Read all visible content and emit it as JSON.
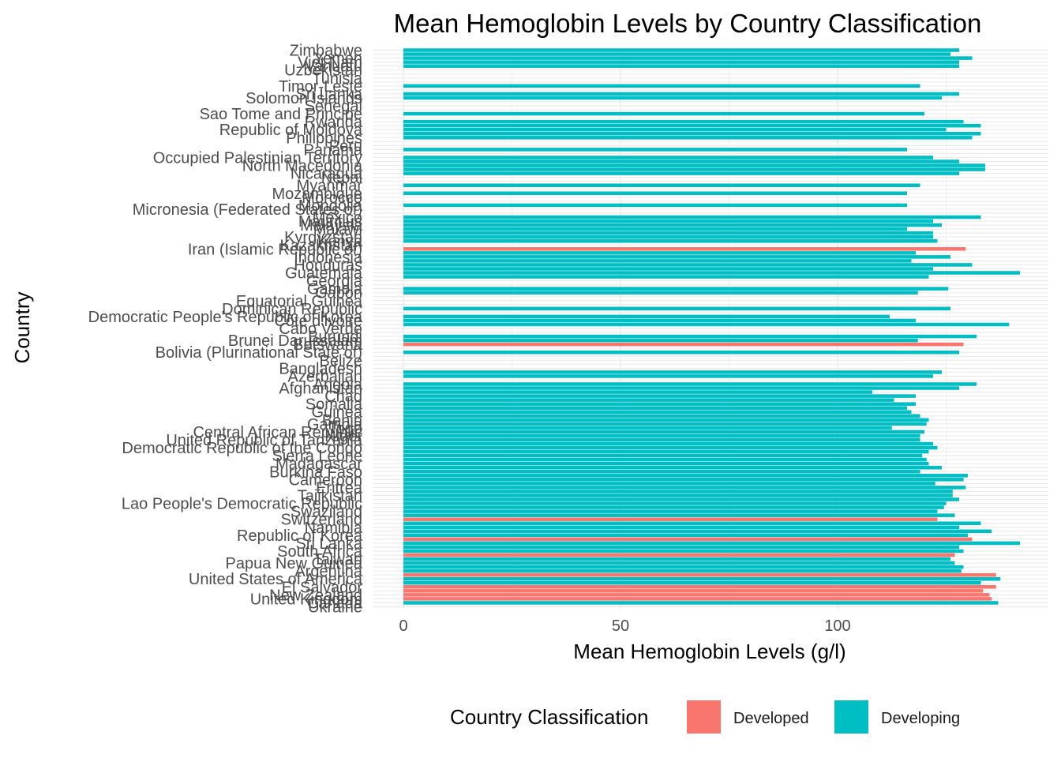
{
  "chart_data": {
    "type": "bar",
    "orientation": "horizontal",
    "title": "Mean Hemoglobin Levels by Country Classification",
    "xlabel": "Mean Hemoglobin Levels (g/l)",
    "ylabel": "Country",
    "xlim": [
      0,
      142
    ],
    "xticks": [
      0,
      50,
      100
    ],
    "grid": true,
    "legend": {
      "title": "Country Classification",
      "position": "bottom",
      "entries": [
        {
          "label": "Developed",
          "color": "#F8766D"
        },
        {
          "label": "Developing",
          "color": "#00BFC4"
        }
      ]
    },
    "colors": {
      "Developed": "#F8766D",
      "Developing": "#00BFC4"
    },
    "bars": [
      {
        "country": "Zimbabwe",
        "value": 128,
        "class": "Developing"
      },
      {
        "country": "",
        "value": 126,
        "class": "Developing"
      },
      {
        "country": "Yemen",
        "value": 131,
        "class": "Developing"
      },
      {
        "country": "Viet Nam",
        "value": 128,
        "class": "Developing"
      },
      {
        "country": "Vanuatu",
        "value": 128,
        "class": "Developing"
      },
      {
        "country": "Uzbekistan",
        "value": 0,
        "class": "Developing"
      },
      {
        "country": "",
        "value": 0,
        "class": "Developing"
      },
      {
        "country": "Tunisia",
        "value": 0,
        "class": "Developing"
      },
      {
        "country": "",
        "value": 0,
        "class": "Developing"
      },
      {
        "country": "Timor-Leste",
        "value": 119,
        "class": "Developing"
      },
      {
        "country": "",
        "value": 0,
        "class": "Developing"
      },
      {
        "country": "Sri Lanka",
        "value": 128,
        "class": "Developing"
      },
      {
        "country": "Solomon Islands",
        "value": 124,
        "class": "Developing"
      },
      {
        "country": "",
        "value": 0,
        "class": "Developing"
      },
      {
        "country": "Senegal",
        "value": 0,
        "class": "Developing"
      },
      {
        "country": "",
        "value": 0,
        "class": "Developing"
      },
      {
        "country": "Sao Tome and Principe",
        "value": 120,
        "class": "Developing"
      },
      {
        "country": "",
        "value": 0,
        "class": "Developing"
      },
      {
        "country": "Rwanda",
        "value": 129,
        "class": "Developing"
      },
      {
        "country": "",
        "value": 133,
        "class": "Developing"
      },
      {
        "country": "Republic of Moldova",
        "value": 125,
        "class": "Developing"
      },
      {
        "country": "",
        "value": 133,
        "class": "Developing"
      },
      {
        "country": "Philippines",
        "value": 131,
        "class": "Developing"
      },
      {
        "country": "",
        "value": 0,
        "class": "Developing"
      },
      {
        "country": "Peru",
        "value": 0,
        "class": "Developing"
      },
      {
        "country": "Panama",
        "value": 116,
        "class": "Developing"
      },
      {
        "country": "",
        "value": 0,
        "class": "Developing"
      },
      {
        "country": "Occupied Palestinian Territory",
        "value": 122,
        "class": "Developing"
      },
      {
        "country": "",
        "value": 128,
        "class": "Developing"
      },
      {
        "country": "North Macedonia",
        "value": 134,
        "class": "Developing"
      },
      {
        "country": "",
        "value": 134,
        "class": "Developing"
      },
      {
        "country": "Nicaragua",
        "value": 128,
        "class": "Developing"
      },
      {
        "country": "Nepal",
        "value": 0,
        "class": "Developing"
      },
      {
        "country": "",
        "value": 0,
        "class": "Developing"
      },
      {
        "country": "Myanmar",
        "value": 119,
        "class": "Developing"
      },
      {
        "country": "",
        "value": 0,
        "class": "Developing"
      },
      {
        "country": "Mozambique",
        "value": 116,
        "class": "Developing"
      },
      {
        "country": "Morocco",
        "value": 0,
        "class": "Developing"
      },
      {
        "country": "",
        "value": 0,
        "class": "Developing"
      },
      {
        "country": "Mongolia",
        "value": 116,
        "class": "Developing"
      },
      {
        "country": "Micronesia (Federated States of)",
        "value": 0,
        "class": "Developing"
      },
      {
        "country": "",
        "value": 0,
        "class": "Developing"
      },
      {
        "country": "Mexico",
        "value": 133,
        "class": "Developing"
      },
      {
        "country": "Mauritius",
        "value": 122,
        "class": "Developing"
      },
      {
        "country": "Malaysia",
        "value": 124,
        "class": "Developing"
      },
      {
        "country": "Malawi",
        "value": 116,
        "class": "Developing"
      },
      {
        "country": "",
        "value": 122,
        "class": "Developing"
      },
      {
        "country": "Kyrgyzstan",
        "value": 122,
        "class": "Developing"
      },
      {
        "country": "Kenya",
        "value": 123,
        "class": "Developing"
      },
      {
        "country": "Kazakhstan",
        "value": 0,
        "class": "Developing"
      },
      {
        "country": "Iran (Islamic Republic of)",
        "value": 129.5,
        "class": "Developed"
      },
      {
        "country": "",
        "value": 118,
        "class": "Developing"
      },
      {
        "country": "Indonesia",
        "value": 126,
        "class": "Developing"
      },
      {
        "country": "",
        "value": 117,
        "class": "Developing"
      },
      {
        "country": "Honduras",
        "value": 131,
        "class": "Developing"
      },
      {
        "country": "",
        "value": 122,
        "class": "Developing"
      },
      {
        "country": "Guatemala",
        "value": 142,
        "class": "Developing"
      },
      {
        "country": "",
        "value": 121,
        "class": "Developing"
      },
      {
        "country": "Georgia",
        "value": 0,
        "class": "Developing"
      },
      {
        "country": "",
        "value": 0,
        "class": "Developing"
      },
      {
        "country": "Gambia",
        "value": 125.5,
        "class": "Developing"
      },
      {
        "country": "Gabon",
        "value": 118.5,
        "class": "Developing"
      },
      {
        "country": "",
        "value": 0,
        "class": "Developing"
      },
      {
        "country": "Equatorial Guinea",
        "value": 0,
        "class": "Developing"
      },
      {
        "country": "",
        "value": 0,
        "class": "Developing"
      },
      {
        "country": "Dominican Republic",
        "value": 126,
        "class": "Developing"
      },
      {
        "country": "",
        "value": 0,
        "class": "Developing"
      },
      {
        "country": "Democratic People's Republic of Korea",
        "value": 112,
        "class": "Developing"
      },
      {
        "country": "Côte d'Ivoire",
        "value": 118,
        "class": "Developing"
      },
      {
        "country": "",
        "value": 139.5,
        "class": "Developing"
      },
      {
        "country": "Cabo Verde",
        "value": 0,
        "class": "Developing"
      },
      {
        "country": "",
        "value": 0,
        "class": "Developing"
      },
      {
        "country": "Burundi",
        "value": 132,
        "class": "Developing"
      },
      {
        "country": "Brunei Darussalam",
        "value": 118.5,
        "class": "Developing"
      },
      {
        "country": "Botswana",
        "value": 129,
        "class": "Developed"
      },
      {
        "country": "",
        "value": 0,
        "class": "Developing"
      },
      {
        "country": "Bolivia (Plurinational State of)",
        "value": 128,
        "class": "Developing"
      },
      {
        "country": "",
        "value": 0,
        "class": "Developing"
      },
      {
        "country": "Belize",
        "value": 0,
        "class": "Developing"
      },
      {
        "country": "",
        "value": 0,
        "class": "Developing"
      },
      {
        "country": "Bangladesh",
        "value": 0,
        "class": "Developing"
      },
      {
        "country": "",
        "value": 124,
        "class": "Developing"
      },
      {
        "country": "Azerbaijan",
        "value": 122,
        "class": "Developing"
      },
      {
        "country": "",
        "value": 0,
        "class": "Developing"
      },
      {
        "country": "Angola",
        "value": 132,
        "class": "Developing"
      },
      {
        "country": "Afghanistan",
        "value": 128,
        "class": "Developing"
      },
      {
        "country": "",
        "value": 108,
        "class": "Developing"
      },
      {
        "country": "Chad",
        "value": 118,
        "class": "Developing"
      },
      {
        "country": "",
        "value": 113,
        "class": "Developing"
      },
      {
        "country": "Somalia",
        "value": 118,
        "class": "Developing"
      },
      {
        "country": "",
        "value": 116,
        "class": "Developing"
      },
      {
        "country": "Guinea",
        "value": 117,
        "class": "Developing"
      },
      {
        "country": "",
        "value": 119,
        "class": "Developing"
      },
      {
        "country": "Benin",
        "value": 121,
        "class": "Developing"
      },
      {
        "country": "Gambia",
        "value": 120.5,
        "class": "Developing"
      },
      {
        "country": "Togo",
        "value": 112.5,
        "class": "Developing"
      },
      {
        "country": "Central African Republic",
        "value": 120,
        "class": "Developing"
      },
      {
        "country": "Niger",
        "value": 119,
        "class": "Developing"
      },
      {
        "country": "United Republic of Tanzania",
        "value": 119,
        "class": "Developing"
      },
      {
        "country": "",
        "value": 122,
        "class": "Developing"
      },
      {
        "country": "Democratic Republic of the Congo",
        "value": 123,
        "class": "Developing"
      },
      {
        "country": "",
        "value": 121,
        "class": "Developing"
      },
      {
        "country": "Sierra Leone",
        "value": 119.5,
        "class": "Developing"
      },
      {
        "country": "",
        "value": 120.5,
        "class": "Developing"
      },
      {
        "country": "Madagascar",
        "value": 121,
        "class": "Developing"
      },
      {
        "country": "",
        "value": 124,
        "class": "Developing"
      },
      {
        "country": "Burkina Faso",
        "value": 119,
        "class": "Developing"
      },
      {
        "country": "",
        "value": 130,
        "class": "Developing"
      },
      {
        "country": "Cameroon",
        "value": 129,
        "class": "Developing"
      },
      {
        "country": "",
        "value": 122.5,
        "class": "Developing"
      },
      {
        "country": "Eritrea",
        "value": 129.5,
        "class": "Developing"
      },
      {
        "country": "",
        "value": 126.5,
        "class": "Developing"
      },
      {
        "country": "Tajikistan",
        "value": 126.5,
        "class": "Developing"
      },
      {
        "country": "",
        "value": 128,
        "class": "Developing"
      },
      {
        "country": "Lao People's Democratic Republic",
        "value": 125,
        "class": "Developing"
      },
      {
        "country": "",
        "value": 124.5,
        "class": "Developing"
      },
      {
        "country": "Swaziland",
        "value": 123,
        "class": "Developing"
      },
      {
        "country": "",
        "value": 127,
        "class": "Developing"
      },
      {
        "country": "Switzerland",
        "value": 123,
        "class": "Developed"
      },
      {
        "country": "",
        "value": 133,
        "class": "Developing"
      },
      {
        "country": "Namibia",
        "value": 128,
        "class": "Developing"
      },
      {
        "country": "",
        "value": 135.5,
        "class": "Developing"
      },
      {
        "country": "Republic of Korea",
        "value": 130,
        "class": "Developing"
      },
      {
        "country": "",
        "value": 131,
        "class": "Developed"
      },
      {
        "country": "Sri Lanka",
        "value": 142,
        "class": "Developing"
      },
      {
        "country": "",
        "value": 128,
        "class": "Developing"
      },
      {
        "country": "South Africa",
        "value": 129,
        "class": "Developing"
      },
      {
        "country": "",
        "value": 127,
        "class": "Developed"
      },
      {
        "country": "Taiwan",
        "value": 126,
        "class": "Developing"
      },
      {
        "country": "Papua New Guinea",
        "value": 127,
        "class": "Developing"
      },
      {
        "country": "",
        "value": 129,
        "class": "Developing"
      },
      {
        "country": "Argentina",
        "value": 128.5,
        "class": "Developing"
      },
      {
        "country": "",
        "value": 136.5,
        "class": "Developed"
      },
      {
        "country": "United States of America",
        "value": 137.5,
        "class": "Developing"
      },
      {
        "country": "",
        "value": 133,
        "class": "Developing"
      },
      {
        "country": "El Salvador",
        "value": 136.5,
        "class": "Developed"
      },
      {
        "country": "",
        "value": 133.5,
        "class": "Developed"
      },
      {
        "country": "New Zealand",
        "value": 135,
        "class": "Developed"
      },
      {
        "country": "United Kingdom",
        "value": 135.5,
        "class": "Developed"
      },
      {
        "country": "Canada",
        "value": 137,
        "class": "Developing"
      },
      {
        "country": "Ukraine",
        "value": 0,
        "class": "Developing"
      }
    ]
  }
}
